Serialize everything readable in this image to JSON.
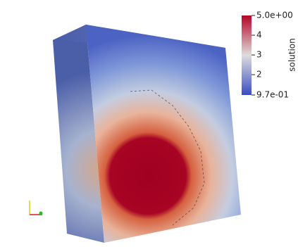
{
  "colorbar": {
    "title": "solution",
    "range": [
      0.97,
      5.0
    ],
    "ticks": [
      {
        "value": 5.0,
        "label": "5.0e+00"
      },
      4,
      3,
      2,
      {
        "value": 0.97,
        "label": "9.7e-01"
      }
    ]
  }
}
